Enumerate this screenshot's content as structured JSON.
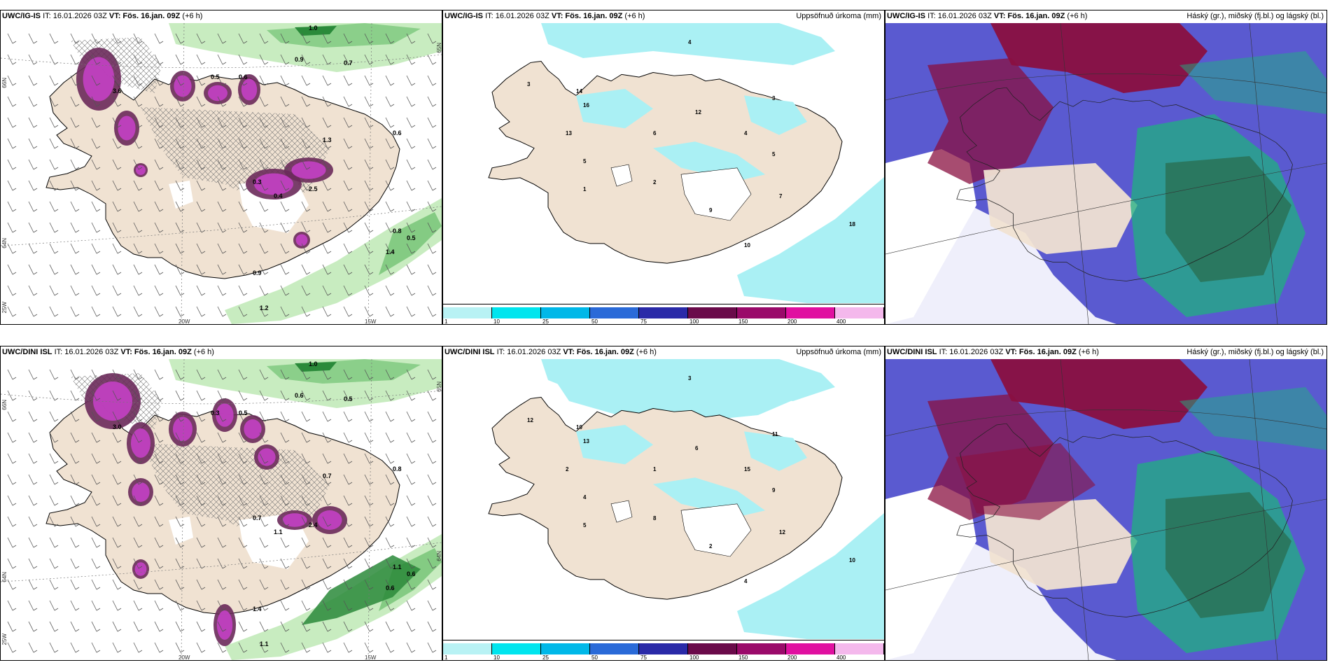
{
  "rows": [
    {
      "panels": [
        {
          "model": "UWC/IG-IS",
          "it": "IT: 16.01.2026 03Z",
          "vt": "VT: Fös. 16.jan. 09Z",
          "lead": "(+6 h)",
          "title": "",
          "type": "wind"
        },
        {
          "model": "UWC/IG-IS",
          "it": "IT: 16.01.2026 03Z",
          "vt": "VT: Fös. 16.jan. 09Z",
          "lead": "(+6 h)",
          "title": "Uppsöfnuð úrkoma (mm)",
          "type": "precip"
        },
        {
          "model": "UWC/IG-IS",
          "it": "IT: 16.01.2026 03Z",
          "vt": "VT: Fös. 16.jan. 09Z",
          "lead": "(+6 h)",
          "title": "Háský (gr.), miðský (fj.bl.) og lágský (bl.)",
          "type": "cloud"
        }
      ]
    },
    {
      "panels": [
        {
          "model": "UWC/DINI ISL",
          "it": "IT: 16.01.2026 03Z",
          "vt": "VT: Fös. 16.jan. 09Z",
          "lead": "(+6 h)",
          "title": "",
          "type": "wind"
        },
        {
          "model": "UWC/DINI ISL",
          "it": "IT: 16.01.2026 03Z",
          "vt": "VT: Fös. 16.jan. 09Z",
          "lead": "(+6 h)",
          "title": "Uppsöfnuð úrkoma (mm)",
          "type": "precip"
        },
        {
          "model": "UWC/DINI ISL",
          "it": "IT: 16.01.2026 03Z",
          "vt": "VT: Fös. 16.jan. 09Z",
          "lead": "(+6 h)",
          "title": "Háský (gr.), miðský (fj.bl.) og lágský (bl.)",
          "type": "cloud"
        }
      ]
    }
  ],
  "axes": {
    "lon_20": "20W",
    "lon_15": "15W",
    "lon_25": "25W",
    "lat_66": "66N",
    "lat_64": "64N",
    "lat_65": "65N"
  },
  "colorbar": {
    "ticks": [
      "1",
      "10",
      "25",
      "50",
      "75",
      "100",
      "150",
      "200",
      "400"
    ],
    "colors": [
      "#b8f2f4",
      "#00e5ee",
      "#00b8e8",
      "#2a6ad8",
      "#2a2aa8",
      "#6a0a4a",
      "#9a0a6a",
      "#e010a0",
      "#f4b8ec"
    ]
  },
  "colors": {
    "land": "#f0e2d2",
    "sea_precip": "#aaf0f4",
    "green_light": "#c8ecc0",
    "green_dark": "#2a8a3a",
    "magenta": "#c040c0",
    "purple_dark": "#6a2a5a",
    "cloud_blue": "#5a5ad0",
    "cloud_red": "#8a1040",
    "cloud_green": "#20b080"
  },
  "labels_wind_top": [
    "0.5",
    "0.6",
    "0.9",
    "1.3",
    "0.8",
    "1.4",
    "0.9",
    "1.2",
    "0.7",
    "3.6",
    "2.5",
    "0.3",
    "0.4",
    "0.6",
    "1.0",
    "0.5"
  ],
  "labels_wind_bot": [
    "0.3",
    "0.5",
    "0.6",
    "0.7",
    "1.1",
    "0.6",
    "1.4",
    "1.1",
    "0.5",
    "3.0",
    "2.4",
    "0.7",
    "1.1",
    "0.8",
    "1.0",
    "0.6"
  ],
  "labels_precip_top": [
    "4",
    "14",
    "16",
    "3",
    "13",
    "5",
    "1",
    "2",
    "6",
    "12",
    "3",
    "4",
    "5",
    "7",
    "18",
    "10",
    "9"
  ],
  "labels_precip_bot": [
    "3",
    "10",
    "13",
    "12",
    "2",
    "4",
    "5",
    "8",
    "1",
    "6",
    "11",
    "15",
    "9",
    "12",
    "10",
    "4",
    "2"
  ]
}
